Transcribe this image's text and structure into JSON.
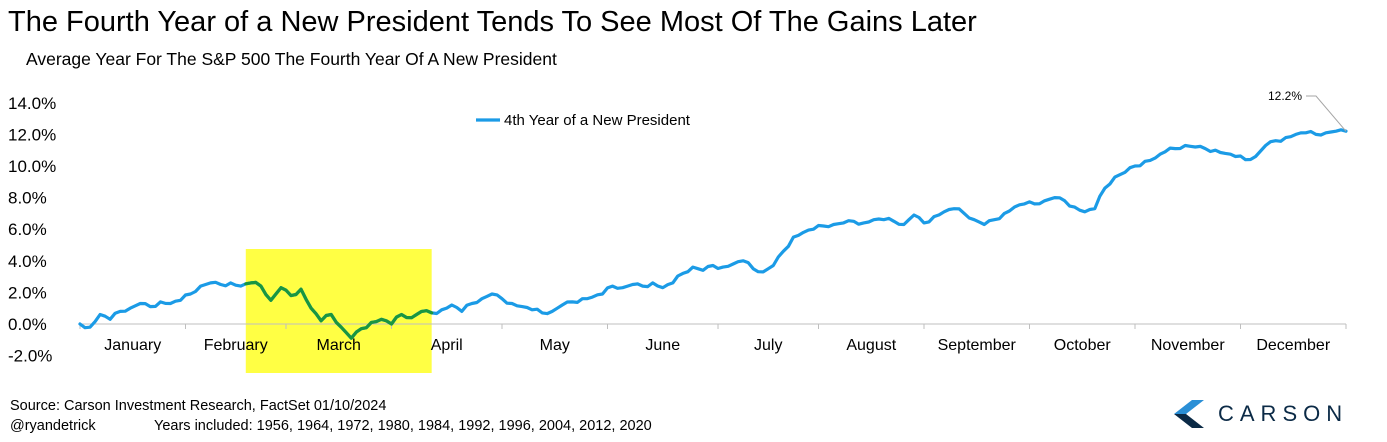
{
  "title": "The Fourth Year of a New President Tends To See Most Of The Gains Later",
  "subtitle": "Average Year For The S&P 500 The Fourth Year Of A New President",
  "footer": {
    "source": "Source: Carson Investment Research, FactSet 01/10/2024",
    "handle": "@ryandetrick",
    "years": "Years included: 1956, 1964, 1972, 1980, 1984, 1992, 1996, 2004, 2012, 2020"
  },
  "logo": {
    "text": "CARSON",
    "color": "#0b2a46",
    "accent": "#2a8fd6"
  },
  "chart_data": {
    "type": "line",
    "title": "The Fourth Year of a New President Tends To See Most Of The Gains Later",
    "subtitle": "Average Year For The S&P 500 The Fourth Year Of A New President",
    "ylim": [
      -2,
      14
    ],
    "yticks": [
      -2,
      0,
      2,
      4,
      6,
      8,
      10,
      12,
      14
    ],
    "ytick_labels": [
      "-2.0%",
      "0.0%",
      "2.0%",
      "4.0%",
      "6.0%",
      "8.0%",
      "10.0%",
      "12.0%",
      "14.0%"
    ],
    "xlim": [
      0,
      252
    ],
    "x_unit": "trading day of year",
    "month_labels": [
      "January",
      "February",
      "March",
      "April",
      "May",
      "June",
      "July",
      "August",
      "September",
      "October",
      "November",
      "December"
    ],
    "month_positions": [
      0,
      21,
      41,
      62,
      84,
      105,
      127,
      147,
      168,
      189,
      210,
      231
    ],
    "legend": {
      "entries": [
        "4th Year of a New President"
      ],
      "placement": "top-center"
    },
    "grid": false,
    "highlight": {
      "x_range": [
        33,
        70
      ],
      "color": "#ffff44",
      "line_color": "#1a9640"
    },
    "annotation": {
      "text": "12.2%",
      "x": 252,
      "y": 12.2
    },
    "series": [
      {
        "name": "4th Year of a New President",
        "color": "#1b9be6",
        "x": [
          0,
          2,
          4,
          6,
          8,
          10,
          12,
          14,
          16,
          18,
          20,
          22,
          24,
          26,
          28,
          30,
          32,
          34,
          36,
          38,
          40,
          42,
          44,
          46,
          48,
          50,
          52,
          54,
          56,
          58,
          60,
          62,
          64,
          66,
          68,
          70,
          72,
          74,
          76,
          78,
          80,
          82,
          84,
          86,
          88,
          90,
          92,
          94,
          96,
          98,
          100,
          102,
          104,
          106,
          108,
          110,
          112,
          114,
          116,
          118,
          120,
          122,
          124,
          126,
          128,
          130,
          132,
          134,
          136,
          138,
          140,
          142,
          144,
          146,
          148,
          150,
          152,
          154,
          156,
          158,
          160,
          162,
          164,
          166,
          168,
          170,
          172,
          174,
          176,
          178,
          180,
          182,
          184,
          186,
          188,
          190,
          192,
          194,
          196,
          198,
          200,
          202,
          204,
          206,
          208,
          210,
          212,
          214,
          216,
          218,
          220,
          222,
          224,
          226,
          228,
          230,
          232,
          234,
          236,
          238,
          240,
          242,
          244,
          246,
          248,
          250,
          252
        ],
        "y": [
          0.0,
          -0.2,
          0.6,
          0.3,
          0.8,
          1.0,
          1.3,
          1.1,
          1.4,
          1.3,
          1.5,
          1.9,
          2.4,
          2.6,
          2.5,
          2.6,
          2.4,
          2.6,
          2.4,
          1.5,
          2.3,
          1.8,
          2.2,
          1.0,
          0.2,
          0.6,
          -0.2,
          -0.9,
          -0.3,
          0.1,
          0.3,
          0.0,
          0.6,
          0.4,
          0.8,
          0.7,
          0.9,
          1.2,
          0.8,
          1.3,
          1.6,
          1.9,
          1.6,
          1.3,
          1.1,
          0.9,
          0.7,
          0.8,
          1.2,
          1.4,
          1.6,
          1.7,
          1.9,
          2.4,
          2.3,
          2.5,
          2.4,
          2.6,
          2.3,
          2.6,
          3.2,
          3.6,
          3.4,
          3.7,
          3.6,
          3.8,
          4.0,
          3.5,
          3.3,
          3.7,
          4.6,
          5.5,
          5.8,
          6.0,
          6.2,
          6.3,
          6.4,
          6.5,
          6.4,
          6.6,
          6.6,
          6.5,
          6.3,
          6.9,
          6.4,
          6.8,
          7.1,
          7.3,
          7.0,
          6.6,
          6.3,
          6.6,
          7.0,
          7.4,
          7.6,
          7.6,
          7.8,
          8.0,
          7.8,
          7.4,
          7.1,
          7.3,
          8.6,
          9.3,
          9.6,
          10.0,
          10.3,
          10.5,
          10.9,
          11.1,
          11.3,
          11.2,
          11.1,
          11.0,
          10.8,
          10.6,
          10.4,
          10.6,
          11.3,
          11.6,
          11.8,
          12.0,
          12.1,
          12.0,
          12.1,
          12.2,
          12.2
        ]
      }
    ]
  }
}
